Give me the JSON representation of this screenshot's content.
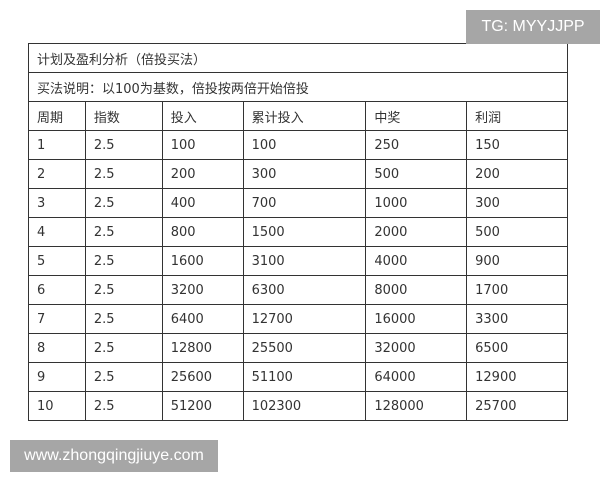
{
  "watermark_top": "TG: MYYJJPP",
  "watermark_bottom": "www.zhongqingjiuye.com",
  "table": {
    "title": "计划及盈利分析（倍投买法）",
    "note": "买法说明：以100为基数，倍投按两倍开始倍投",
    "headers": [
      "周期",
      "指数",
      "投入",
      "累计投入",
      "中奖",
      "利润"
    ],
    "rows": [
      [
        "1",
        "2.5",
        "100",
        "100",
        "250",
        "150"
      ],
      [
        "2",
        "2.5",
        "200",
        "300",
        "500",
        "200"
      ],
      [
        "3",
        "2.5",
        "400",
        "700",
        "1000",
        "300"
      ],
      [
        "4",
        "2.5",
        "800",
        "1500",
        "2000",
        "500"
      ],
      [
        "5",
        "2.5",
        "1600",
        "3100",
        "4000",
        "900"
      ],
      [
        "6",
        "2.5",
        "3200",
        "6300",
        "8000",
        "1700"
      ],
      [
        "7",
        "2.5",
        "6400",
        "12700",
        "16000",
        "3300"
      ],
      [
        "8",
        "2.5",
        "12800",
        "25500",
        "32000",
        "6500"
      ],
      [
        "9",
        "2.5",
        "25600",
        "51100",
        "64000",
        "12900"
      ],
      [
        "10",
        "2.5",
        "51200",
        "102300",
        "128000",
        "25700"
      ]
    ]
  }
}
